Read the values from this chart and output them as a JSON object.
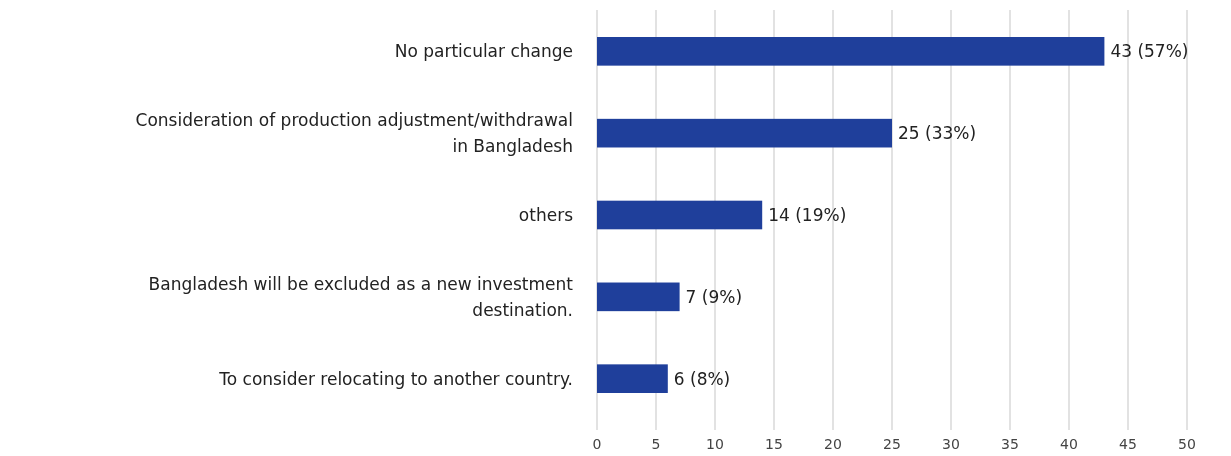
{
  "chart_data": {
    "type": "bar",
    "orientation": "horizontal",
    "categories": [
      "No particular change",
      "Consideration of production adjustment/withdrawal in Bangladesh",
      "others",
      "Bangladesh will be excluded as a new investment destination.",
      "To consider relocating to another country."
    ],
    "values": [
      43,
      25,
      14,
      7,
      6
    ],
    "value_labels": [
      "43 (57%)",
      "25 (33%)",
      "14 (19%)",
      "7 (9%)",
      "6 (8%)"
    ],
    "color": "#1f3f9b",
    "xlim": [
      0,
      50
    ],
    "xticks": [
      0,
      5,
      10,
      15,
      20,
      25,
      30,
      35,
      40,
      45,
      50
    ],
    "grid": "x"
  }
}
